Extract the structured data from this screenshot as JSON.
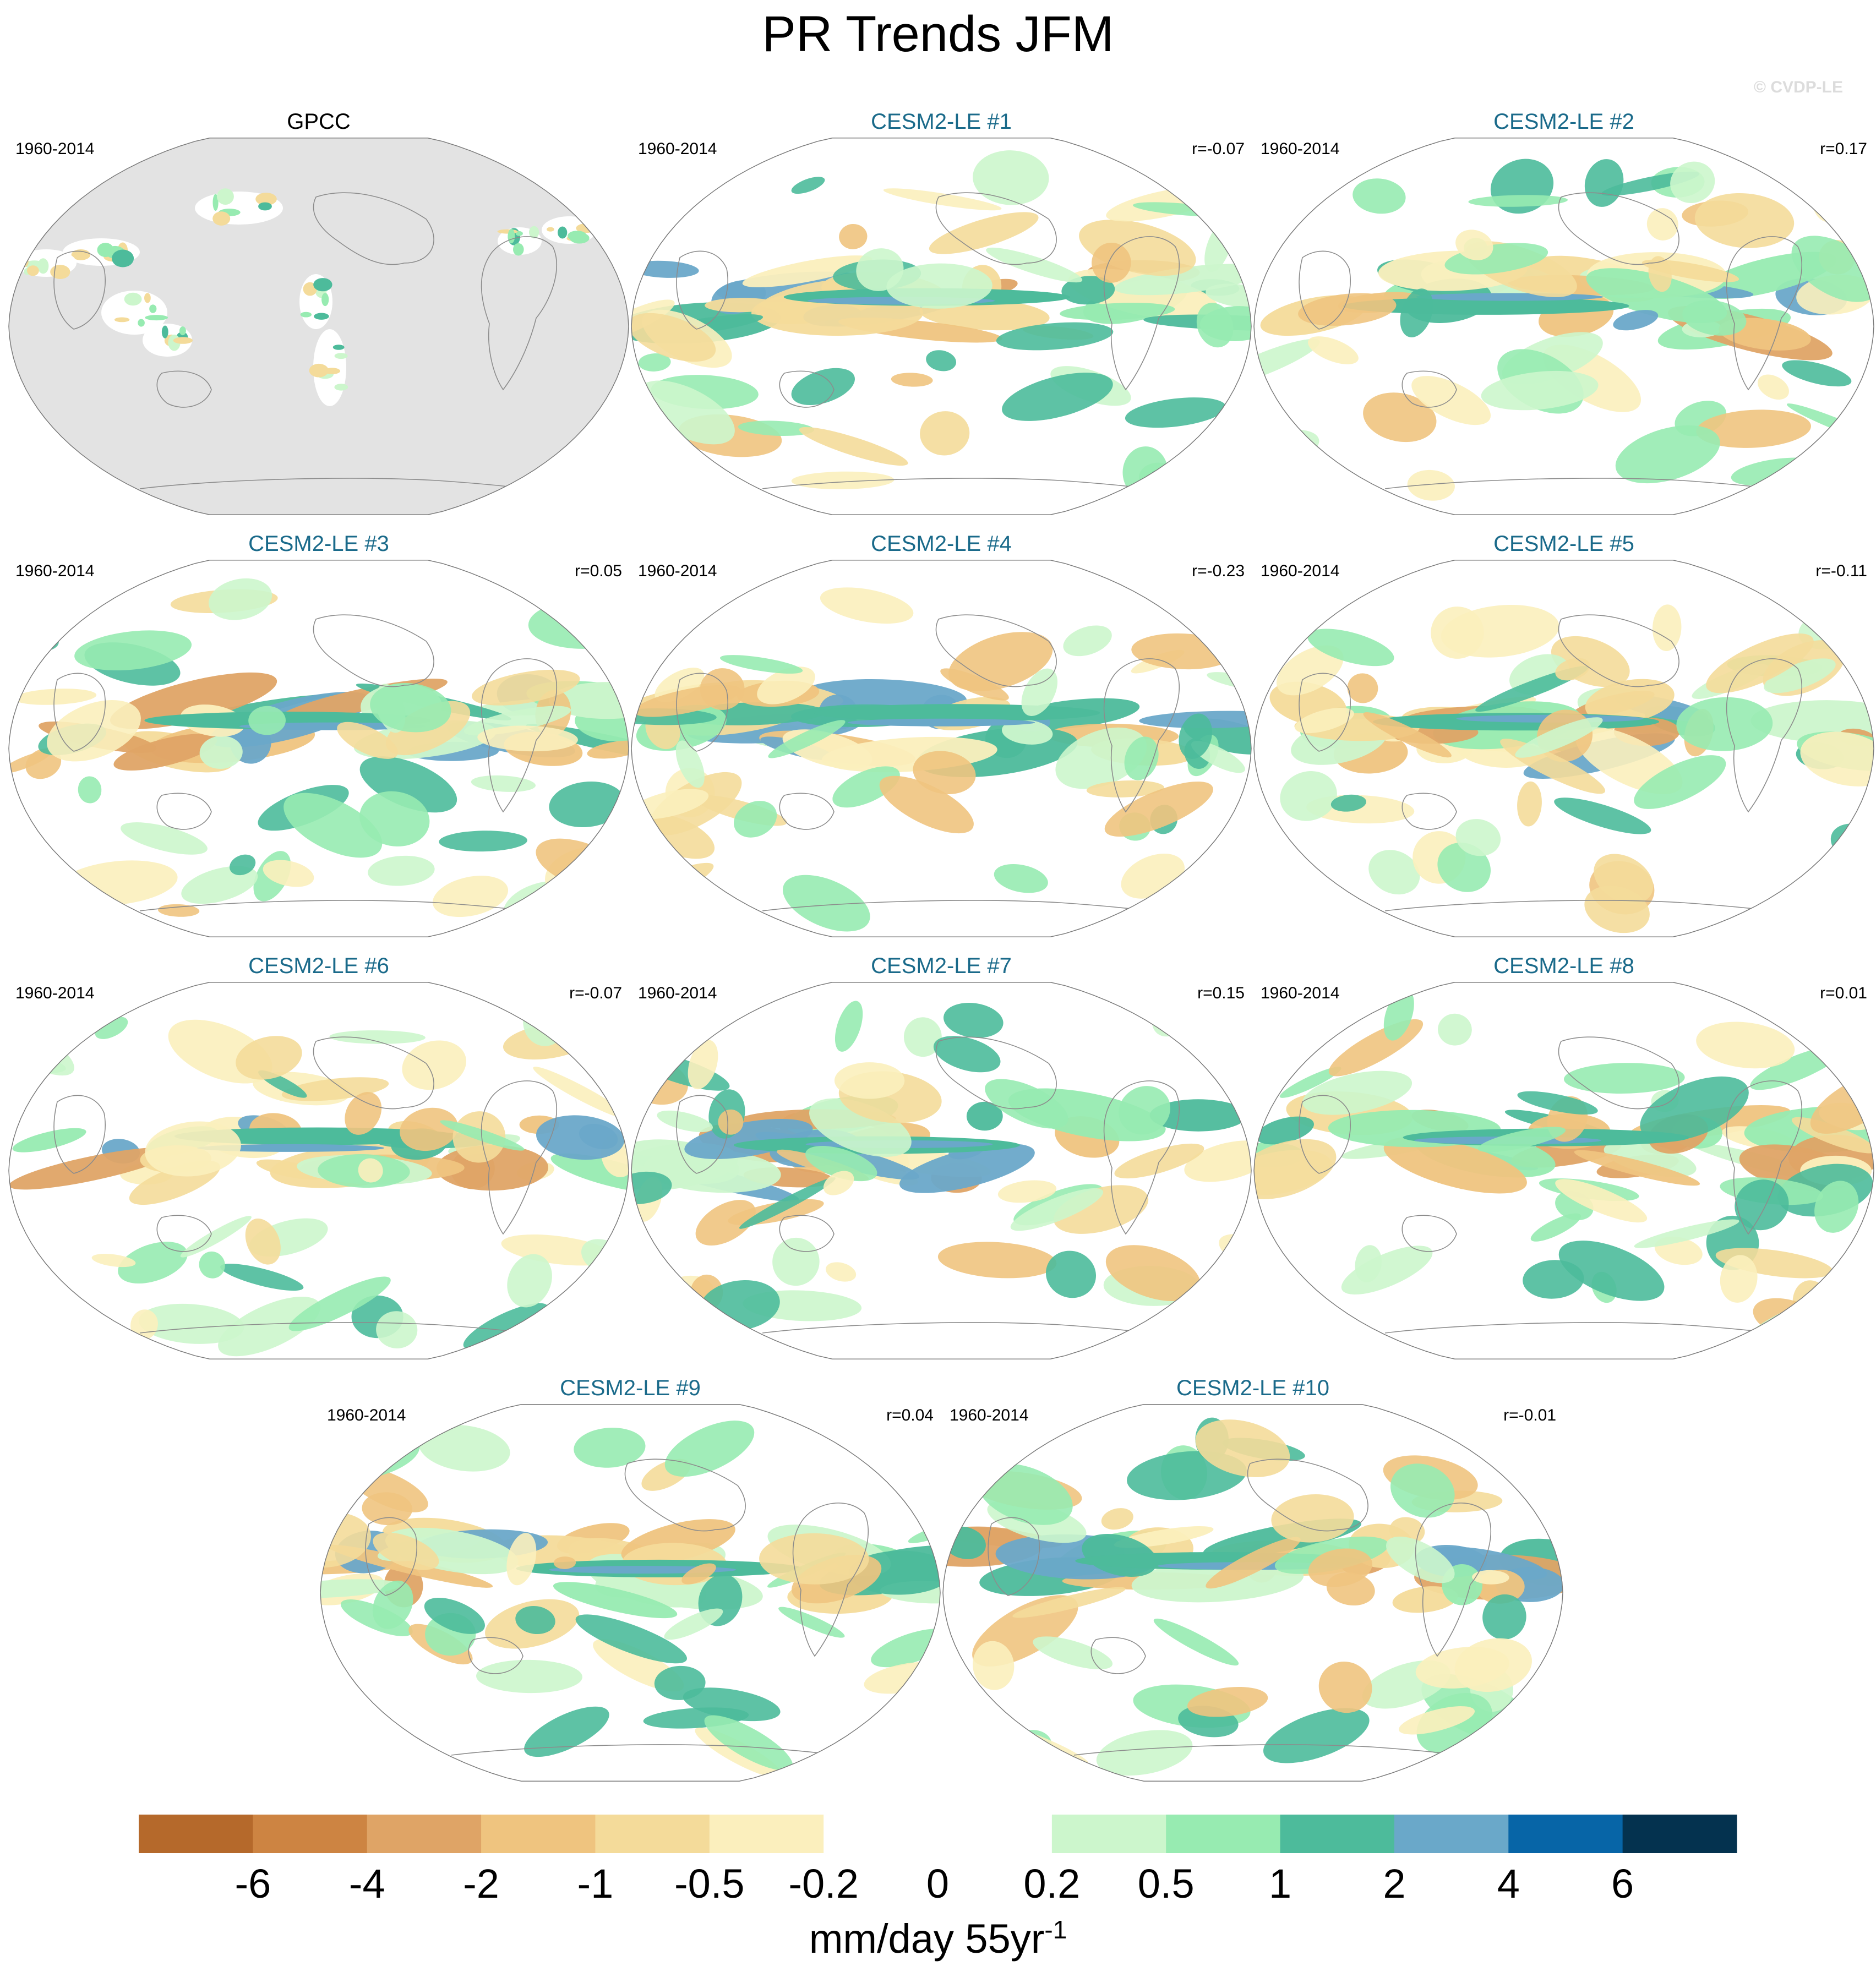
{
  "title": "PR Trends JFM",
  "watermark": "© CVDP-LE",
  "panels": [
    {
      "name": "GPCC",
      "period": "1960-2014",
      "r": "",
      "observed": true
    },
    {
      "name": "CESM2-LE #1",
      "period": "1960-2014",
      "r": "r=-0.07",
      "observed": false
    },
    {
      "name": "CESM2-LE #2",
      "period": "1960-2014",
      "r": "r=0.17",
      "observed": false
    },
    {
      "name": "CESM2-LE #3",
      "period": "1960-2014",
      "r": "r=0.05",
      "observed": false
    },
    {
      "name": "CESM2-LE #4",
      "period": "1960-2014",
      "r": "r=-0.23",
      "observed": false
    },
    {
      "name": "CESM2-LE #5",
      "period": "1960-2014",
      "r": "r=-0.11",
      "observed": false
    },
    {
      "name": "CESM2-LE #6",
      "period": "1960-2014",
      "r": "r=-0.07",
      "observed": false
    },
    {
      "name": "CESM2-LE #7",
      "period": "1960-2014",
      "r": "r=0.15",
      "observed": false
    },
    {
      "name": "CESM2-LE #8",
      "period": "1960-2014",
      "r": "r=0.01",
      "observed": false
    },
    {
      "name": "CESM2-LE #9",
      "period": "1960-2014",
      "r": "r=0.04",
      "observed": false
    },
    {
      "name": "CESM2-LE #10",
      "period": "1960-2014",
      "r": "r=-0.01",
      "observed": false
    }
  ],
  "colors": {
    "obs_title": "#000000",
    "model_title": "#1a6a8a",
    "missing_land": "#e3e3e3",
    "coastline": "#8c8c8c"
  },
  "chart_data": {
    "type": "heatmap",
    "title": "PR Trends JFM",
    "colorbar": {
      "label": "mm/day 55yr",
      "label_superscript": "-1",
      "ticks": [
        "-6",
        "-4",
        "-2",
        "-1",
        "-0.5",
        "-0.2",
        "0",
        "0.2",
        "0.5",
        "1",
        "2",
        "4",
        "6"
      ],
      "colors": [
        "#b5692b",
        "#cd8442",
        "#dfa466",
        "#efc47f",
        "#f4db9a",
        "#fbefbd",
        "#ffffff",
        "#ffffff",
        "#ccf6cc",
        "#97ebb1",
        "#4dbb9b",
        "#6aa8c9",
        "#0765a7",
        "#04324f"
      ]
    }
  }
}
